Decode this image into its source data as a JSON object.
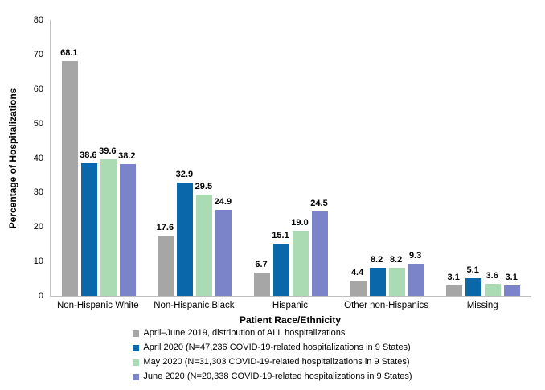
{
  "chart_data": {
    "type": "bar",
    "title": "",
    "xlabel": "Patient Race/Ethnicity",
    "ylabel": "Percentage of Hospitalizations",
    "ylim": [
      0,
      80
    ],
    "ytick_interval": 10,
    "grid": false,
    "legend_position": "bottom",
    "value_label_decimals": 1,
    "categories": [
      "Non-Hispanic White",
      "Non-Hispanic Black",
      "Hispanic",
      "Other non-Hispanics",
      "Missing"
    ],
    "series": [
      {
        "name": "April–June 2019, distribution of ALL hospitalizations",
        "color": "#A6A6A6",
        "values": [
          68.1,
          17.6,
          6.7,
          4.4,
          3.1
        ]
      },
      {
        "name": "April 2020 (N=47,236 COVID-19-related hospitalizations in 9 States)",
        "color": "#0A67A9",
        "values": [
          38.6,
          32.9,
          15.1,
          8.2,
          5.1
        ]
      },
      {
        "name": "May 2020 (N=31,303 COVID-19-related hospitalizations in 9 States)",
        "color": "#ABDBB2",
        "values": [
          39.6,
          29.5,
          19.0,
          8.2,
          3.6
        ]
      },
      {
        "name": "June 2020 (N=20,338 COVID-19-related hospitalizations in 9 States)",
        "color": "#7B84C9",
        "values": [
          38.2,
          24.9,
          24.5,
          9.3,
          3.1
        ]
      }
    ],
    "axis_line_color": "#BFBFBF"
  }
}
